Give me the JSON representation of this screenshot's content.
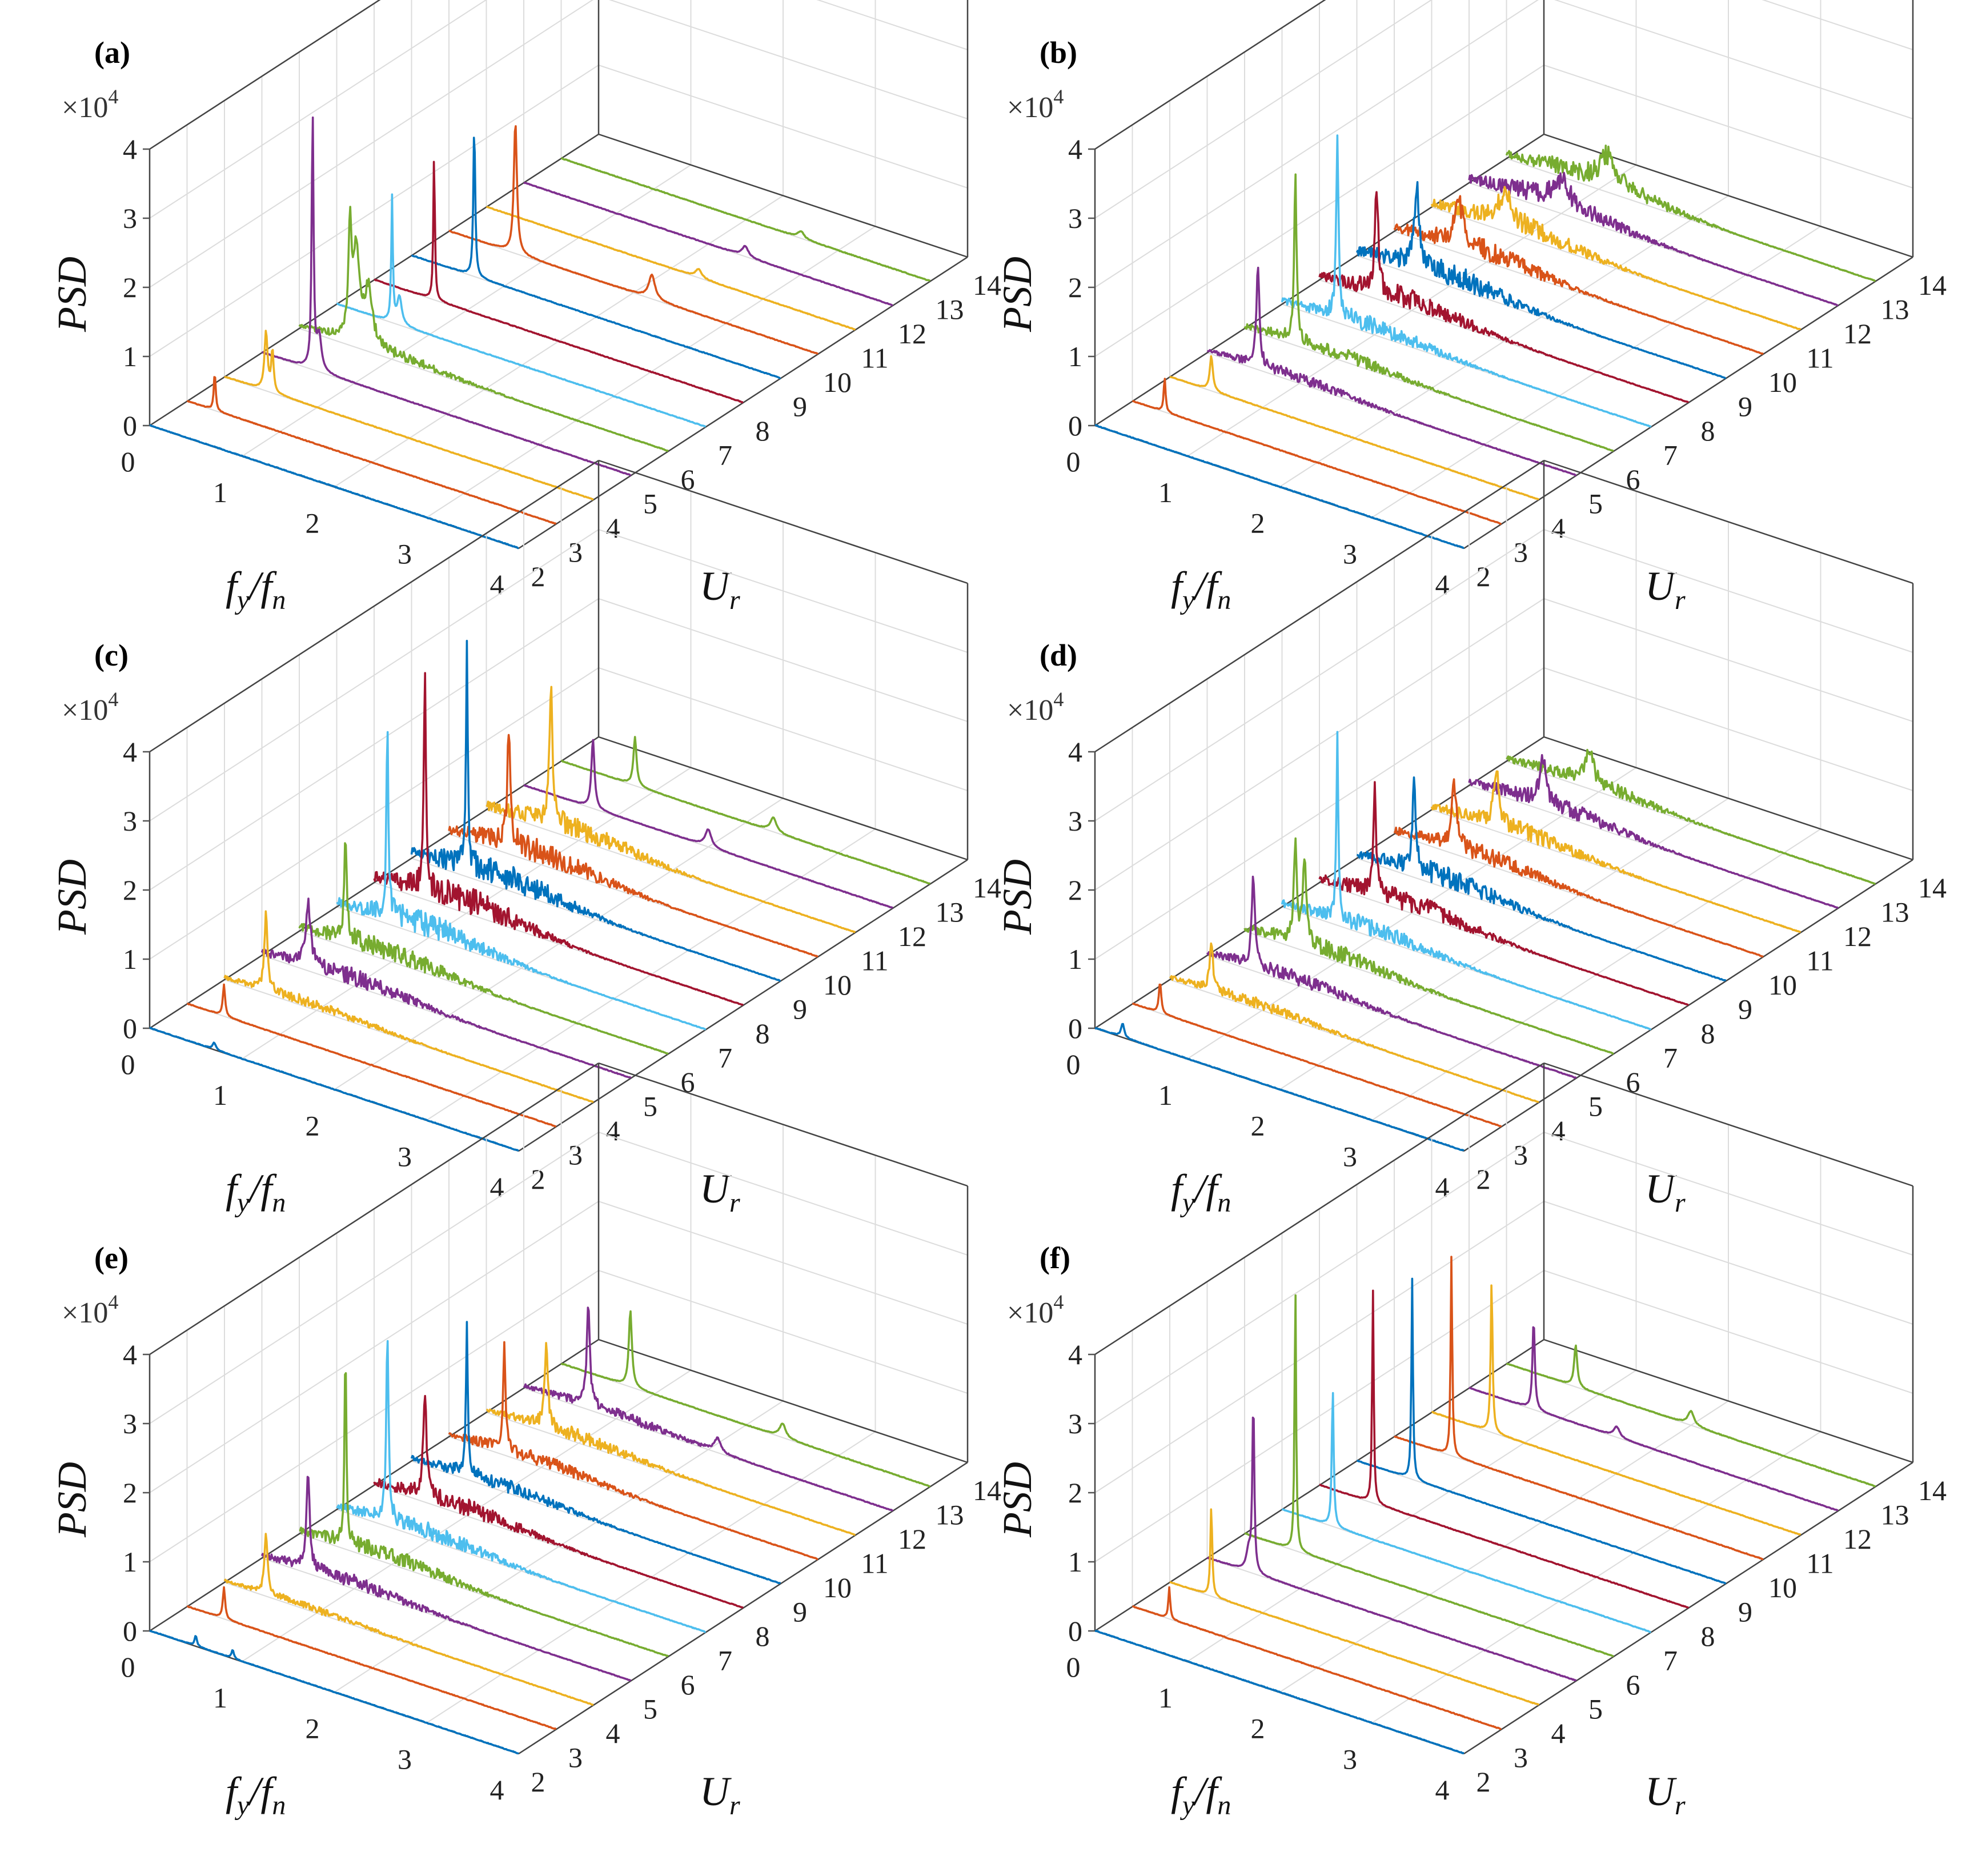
{
  "colors": [
    "#0072BD",
    "#D95319",
    "#EDB120",
    "#7E2F8E",
    "#77AC30",
    "#4DBEEE",
    "#A2142F"
  ],
  "chart_data": {
    "type": "line",
    "subtype": "3d-waterfall",
    "xlabel": "f_y/f_n",
    "xlabel_main": "f",
    "xlabel_sub_1": "y",
    "xlabel_slash": "/f",
    "xlabel_sub_2": "n",
    "ylabel": "U_r",
    "ylabel_main": "U",
    "ylabel_sub": "r",
    "zlabel": "PSD",
    "z_multiplier": "×10",
    "z_multiplier_exp": "4",
    "xlim": [
      0,
      4
    ],
    "ylim": [
      2,
      14
    ],
    "zlim": [
      0,
      4
    ],
    "x_ticks": [
      "0",
      "1",
      "2",
      "3",
      "4"
    ],
    "y_ticks": [
      "2",
      "3",
      "4",
      "5",
      "6",
      "7",
      "8",
      "9",
      "10",
      "11",
      "12",
      "13",
      "14"
    ],
    "z_ticks": [
      "0",
      "1",
      "2",
      "3",
      "4"
    ],
    "z_units_note": "PSD values in units of 10^4",
    "panels": [
      {
        "label": "(a)",
        "series": [
          {
            "Ur": 2,
            "peaks": []
          },
          {
            "Ur": 3,
            "peaks": [
              [
                0.3,
                0.55,
                0.012
              ]
            ]
          },
          {
            "Ur": 4,
            "peaks": [
              [
                0.45,
                0.85,
                0.02
              ],
              [
                0.52,
                0.6,
                0.015
              ]
            ]
          },
          {
            "Ur": 5,
            "peaks": [
              [
                0.55,
                3.7,
                0.012
              ],
              [
                0.62,
                0.5,
                0.03
              ]
            ]
          },
          {
            "Ur": 6,
            "peaks": [
              [
                0.55,
                1.6,
                0.02
              ],
              [
                0.62,
                1.3,
                0.04
              ],
              [
                0.75,
                0.8,
                0.05
              ]
            ],
            "noise": 0.15
          },
          {
            "Ur": 7,
            "peaks": [
              [
                0.6,
                1.8,
                0.01
              ],
              [
                0.68,
                0.4,
                0.03
              ]
            ]
          },
          {
            "Ur": 8,
            "peaks": [
              [
                0.65,
                2.1,
                0.01
              ]
            ]
          },
          {
            "Ur": 9,
            "peaks": [
              [
                0.68,
                2.2,
                0.012
              ]
            ]
          },
          {
            "Ur": 10,
            "peaks": [
              [
                0.72,
                1.9,
                0.02
              ],
              [
                2.2,
                0.35,
                0.04
              ]
            ]
          },
          {
            "Ur": 11,
            "peaks": [
              [
                2.3,
                0.12,
                0.04
              ]
            ]
          },
          {
            "Ur": 12,
            "peaks": [
              [
                2.4,
                0.15,
                0.04
              ]
            ]
          },
          {
            "Ur": 13,
            "peaks": [
              [
                2.6,
                0.1,
                0.04
              ]
            ]
          }
        ]
      },
      {
        "label": "(b)",
        "series": [
          {
            "Ur": 2,
            "peaks": []
          },
          {
            "Ur": 3,
            "peaks": [
              [
                0.35,
                0.5,
                0.012
              ]
            ]
          },
          {
            "Ur": 4,
            "peaks": [
              [
                0.45,
                0.5,
                0.02
              ]
            ]
          },
          {
            "Ur": 5,
            "peaks": [
              [
                0.55,
                1.4,
                0.02
              ]
            ],
            "noise": 0.15
          },
          {
            "Ur": 6,
            "peaks": [
              [
                0.55,
                2.4,
                0.015
              ]
            ],
            "noise": 0.2
          },
          {
            "Ur": 7,
            "peaks": [
              [
                0.6,
                2.6,
                0.015
              ]
            ],
            "noise": 0.25
          },
          {
            "Ur": 8,
            "peaks": [
              [
                0.62,
                1.5,
                0.02
              ]
            ],
            "noise": 0.3
          },
          {
            "Ur": 9,
            "peaks": [
              [
                0.65,
                1.1,
                0.03
              ]
            ],
            "noise": 0.35
          },
          {
            "Ur": 10,
            "peaks": [
              [
                0.7,
                0.6,
                0.05
              ]
            ],
            "noise": 0.3
          },
          {
            "Ur": 11,
            "peaks": [
              [
                0.8,
                0.4,
                0.08
              ]
            ],
            "noise": 0.3
          },
          {
            "Ur": 12,
            "peaks": [
              [
                1.0,
                0.35,
                0.1
              ]
            ],
            "noise": 0.3
          },
          {
            "Ur": 13,
            "peaks": [
              [
                1.1,
                0.4,
                0.1
              ]
            ],
            "noise": 0.3
          }
        ]
      },
      {
        "label": "(c)",
        "series": [
          {
            "Ur": 2,
            "peaks": [
              [
                0.7,
                0.1,
                0.02
              ]
            ]
          },
          {
            "Ur": 3,
            "peaks": [
              [
                0.4,
                0.45,
                0.015
              ]
            ]
          },
          {
            "Ur": 4,
            "peaks": [
              [
                0.45,
                1.1,
                0.02
              ]
            ],
            "noise": 0.15
          },
          {
            "Ur": 5,
            "peaks": [
              [
                0.5,
                0.9,
                0.03
              ]
            ],
            "noise": 0.25
          },
          {
            "Ur": 6,
            "peaks": [
              [
                0.5,
                1.6,
                0.015
              ]
            ],
            "noise": 0.3
          },
          {
            "Ur": 7,
            "peaks": [
              [
                0.55,
                2.8,
                0.012
              ]
            ],
            "noise": 0.35
          },
          {
            "Ur": 8,
            "peaks": [
              [
                0.55,
                3.3,
                0.012
              ]
            ],
            "noise": 0.4
          },
          {
            "Ur": 9,
            "peaks": [
              [
                0.6,
                3.2,
                0.012
              ]
            ],
            "noise": 0.4
          },
          {
            "Ur": 10,
            "peaks": [
              [
                0.65,
                1.7,
                0.02
              ]
            ],
            "noise": 0.35
          },
          {
            "Ur": 11,
            "peaks": [
              [
                0.7,
                1.9,
                0.02
              ]
            ],
            "noise": 0.3
          },
          {
            "Ur": 12,
            "peaks": [
              [
                0.75,
                1.0,
                0.02
              ],
              [
                2.0,
                0.25,
                0.04
              ]
            ]
          },
          {
            "Ur": 13,
            "peaks": [
              [
                0.8,
                0.7,
                0.02
              ],
              [
                2.3,
                0.2,
                0.04
              ]
            ]
          }
        ]
      },
      {
        "label": "(d)",
        "series": [
          {
            "Ur": 2,
            "peaks": [
              [
                0.3,
                0.2,
                0.02
              ]
            ]
          },
          {
            "Ur": 3,
            "peaks": [
              [
                0.3,
                0.45,
                0.015
              ]
            ]
          },
          {
            "Ur": 4,
            "peaks": [
              [
                0.45,
                0.7,
                0.02
              ]
            ],
            "noise": 0.15
          },
          {
            "Ur": 5,
            "peaks": [
              [
                0.5,
                1.3,
                0.02
              ]
            ],
            "noise": 0.2
          },
          {
            "Ur": 6,
            "peaks": [
              [
                0.55,
                1.4,
                0.02
              ],
              [
                0.65,
                1.2,
                0.02
              ]
            ],
            "noise": 0.25
          },
          {
            "Ur": 7,
            "peaks": [
              [
                0.6,
                2.6,
                0.012
              ]
            ],
            "noise": 0.25
          },
          {
            "Ur": 8,
            "peaks": [
              [
                0.6,
                1.7,
                0.015
              ]
            ],
            "noise": 0.3
          },
          {
            "Ur": 9,
            "peaks": [
              [
                0.62,
                1.2,
                0.02
              ]
            ],
            "noise": 0.3
          },
          {
            "Ur": 10,
            "peaks": [
              [
                0.65,
                0.9,
                0.03
              ]
            ],
            "noise": 0.25
          },
          {
            "Ur": 11,
            "peaks": [
              [
                0.7,
                0.8,
                0.03
              ]
            ],
            "noise": 0.25
          },
          {
            "Ur": 12,
            "peaks": [
              [
                0.8,
                0.6,
                0.04
              ]
            ],
            "noise": 0.25
          },
          {
            "Ur": 13,
            "peaks": [
              [
                0.9,
                0.45,
                0.05
              ]
            ],
            "noise": 0.2
          }
        ]
      },
      {
        "label": "(e)",
        "series": [
          {
            "Ur": 2,
            "peaks": [
              [
                0.5,
                0.15,
                0.015
              ],
              [
                0.9,
                0.12,
                0.015
              ]
            ]
          },
          {
            "Ur": 3,
            "peaks": [
              [
                0.4,
                0.45,
                0.015
              ]
            ]
          },
          {
            "Ur": 4,
            "peaks": [
              [
                0.45,
                0.85,
                0.02
              ]
            ],
            "noise": 0.1
          },
          {
            "Ur": 5,
            "peaks": [
              [
                0.5,
                1.4,
                0.02
              ]
            ],
            "noise": 0.2
          },
          {
            "Ur": 6,
            "peaks": [
              [
                0.5,
                2.8,
                0.012
              ]
            ],
            "noise": 0.25
          },
          {
            "Ur": 7,
            "peaks": [
              [
                0.55,
                2.7,
                0.015
              ]
            ],
            "noise": 0.25
          },
          {
            "Ur": 8,
            "peaks": [
              [
                0.55,
                1.5,
                0.02
              ]
            ],
            "noise": 0.25
          },
          {
            "Ur": 9,
            "peaks": [
              [
                0.6,
                2.1,
                0.012
              ]
            ],
            "noise": 0.2
          },
          {
            "Ur": 10,
            "peaks": [
              [
                0.6,
                1.6,
                0.015
              ]
            ],
            "noise": 0.2
          },
          {
            "Ur": 11,
            "peaks": [
              [
                0.65,
                1.2,
                0.02
              ]
            ],
            "noise": 0.2
          },
          {
            "Ur": 12,
            "peaks": [
              [
                0.7,
                1.4,
                0.02
              ],
              [
                2.1,
                0.2,
                0.04
              ]
            ],
            "noise": 0.15
          },
          {
            "Ur": 13,
            "peaks": [
              [
                0.75,
                1.1,
                0.02
              ],
              [
                2.4,
                0.2,
                0.04
              ]
            ]
          }
        ]
      },
      {
        "label": "(f)",
        "series": [
          {
            "Ur": 2,
            "peaks": []
          },
          {
            "Ur": 3,
            "peaks": [
              [
                0.4,
                0.45,
                0.012
              ]
            ]
          },
          {
            "Ur": 4,
            "peaks": [
              [
                0.45,
                1.3,
                0.012
              ]
            ]
          },
          {
            "Ur": 5,
            "peaks": [
              [
                0.5,
                2.5,
                0.012
              ],
              [
                0.45,
                0.3,
                0.03
              ]
            ]
          },
          {
            "Ur": 6,
            "peaks": [
              [
                0.55,
                3.9,
                0.01
              ]
            ]
          },
          {
            "Ur": 7,
            "peaks": [
              [
                0.55,
                2.0,
                0.012
              ]
            ]
          },
          {
            "Ur": 8,
            "peaks": [
              [
                0.58,
                3.1,
                0.01
              ]
            ]
          },
          {
            "Ur": 9,
            "peaks": [
              [
                0.6,
                2.9,
                0.01
              ]
            ]
          },
          {
            "Ur": 10,
            "peaks": [
              [
                0.62,
                2.9,
                0.01
              ]
            ]
          },
          {
            "Ur": 11,
            "peaks": [
              [
                0.65,
                2.2,
                0.012
              ]
            ]
          },
          {
            "Ur": 12,
            "peaks": [
              [
                0.7,
                1.3,
                0.015
              ],
              [
                1.6,
                0.15,
                0.04
              ]
            ]
          },
          {
            "Ur": 13,
            "peaks": [
              [
                0.75,
                0.6,
                0.02
              ],
              [
                2.0,
                0.2,
                0.04
              ]
            ]
          }
        ]
      }
    ]
  }
}
